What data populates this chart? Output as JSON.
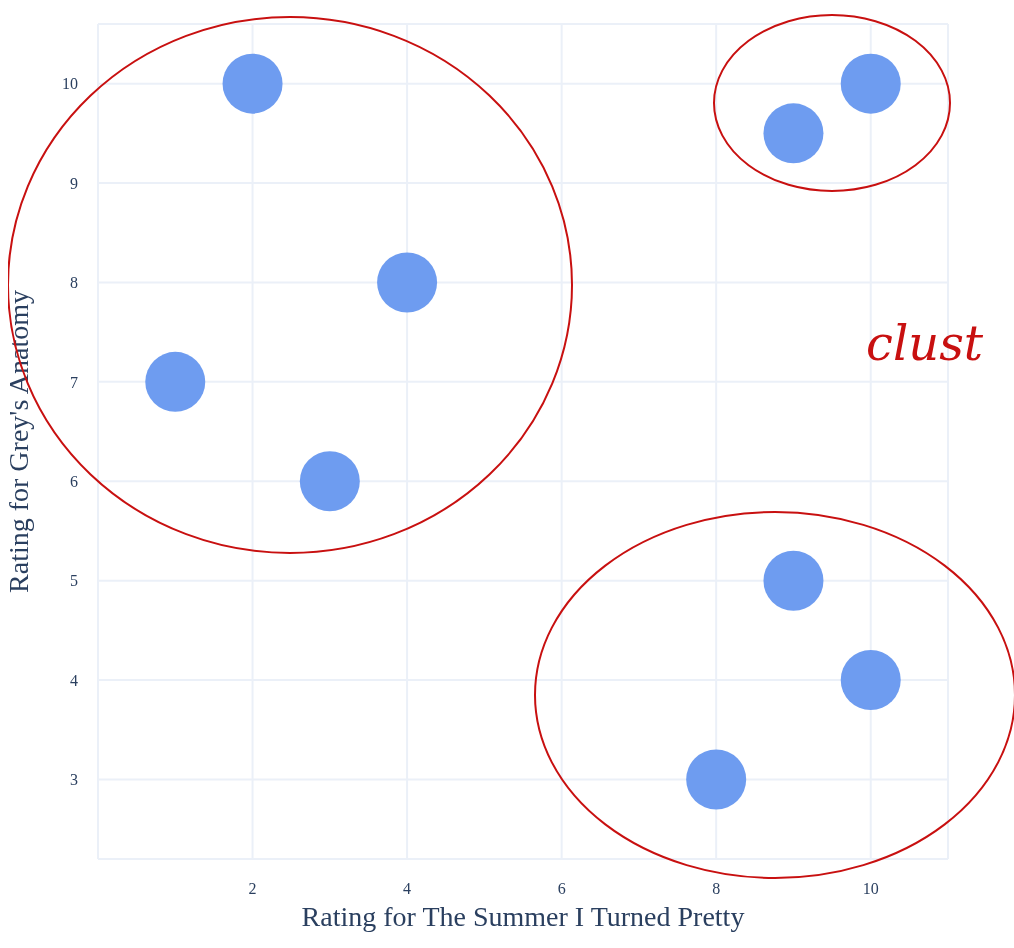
{
  "chart_data": {
    "type": "scatter",
    "xlabel": "Rating for The Summer I Turned Pretty",
    "ylabel": "Rating for Grey's Anatomy",
    "x": [
      2,
      4,
      1,
      3,
      9,
      10,
      9,
      10,
      8
    ],
    "values": [
      10,
      8,
      7,
      6,
      9.5,
      10,
      5,
      4,
      3
    ],
    "color": "#6e9cf0",
    "marker": "circle",
    "grid": true,
    "legend": false,
    "xlim": [
      0,
      11
    ],
    "xticks": [
      2,
      4,
      6,
      8,
      10
    ],
    "ylim": [
      2.2,
      10.6
    ],
    "yticks": [
      3,
      4,
      5,
      6,
      7,
      8,
      9,
      10
    ],
    "annotations": [
      "clust"
    ]
  }
}
